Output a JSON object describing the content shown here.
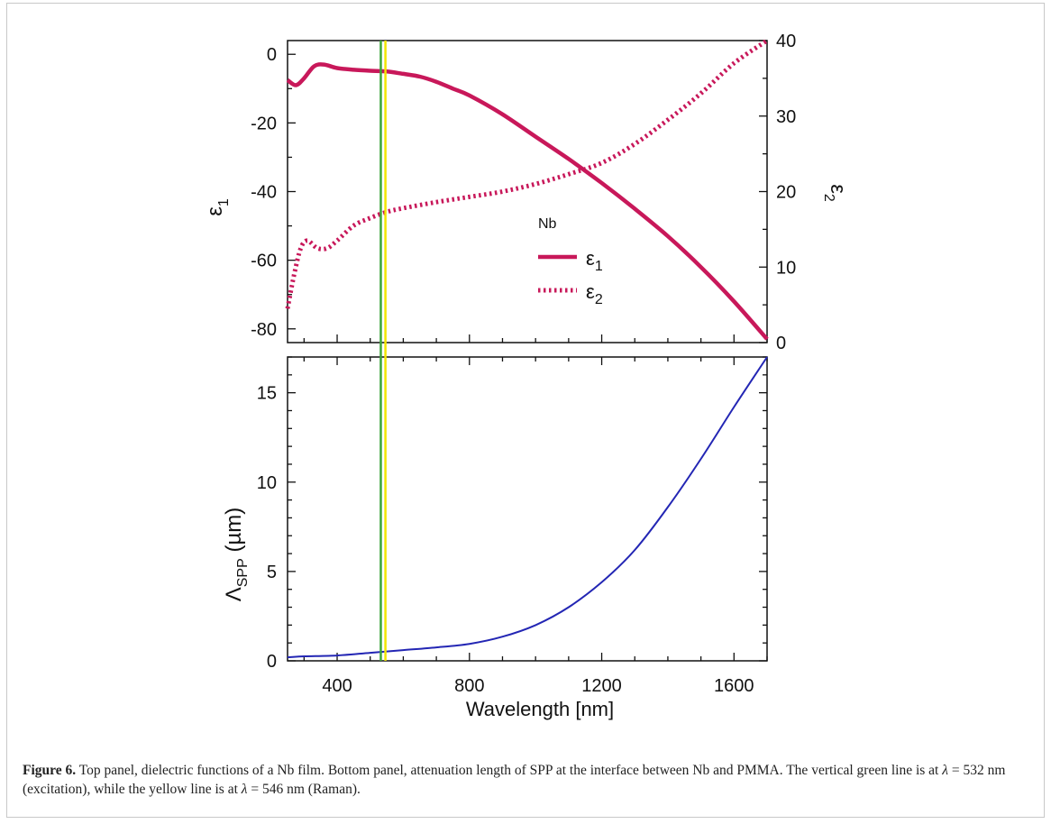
{
  "chart_data": [
    {
      "type": "line",
      "panel": "top",
      "x_range": [
        250,
        1700
      ],
      "left_axis": {
        "ticks": [
          0,
          -20,
          -40,
          -60,
          -80
        ],
        "range": [
          -84,
          4
        ]
      },
      "right_axis": {
        "ticks": [
          40,
          30,
          20,
          10,
          0
        ],
        "range": [
          0,
          40
        ]
      },
      "legend": {
        "title": "Nb",
        "entries": [
          {
            "symbol": "ε",
            "subscript": "1",
            "style": "solid"
          },
          {
            "symbol": "ε",
            "subscript": "2",
            "style": "dotted"
          }
        ],
        "placement": "center"
      },
      "series": [
        {
          "axis": "left",
          "style": "solid",
          "color": "#c8185a",
          "x": [
            250,
            275,
            300,
            330,
            360,
            400,
            450,
            500,
            550,
            600,
            650,
            700,
            750,
            800,
            900,
            1000,
            1100,
            1200,
            1300,
            1400,
            1500,
            1600,
            1700
          ],
          "y": [
            -7.5,
            -9,
            -7,
            -3.5,
            -3,
            -4,
            -4.5,
            -4.8,
            -5,
            -5.7,
            -6.5,
            -8,
            -10,
            -12,
            -17.5,
            -24,
            -30.5,
            -37.5,
            -45,
            -53,
            -62,
            -72,
            -83
          ]
        },
        {
          "axis": "right",
          "style": "dotted",
          "color": "#c8185a",
          "x": [
            250,
            270,
            290,
            310,
            340,
            370,
            400,
            450,
            500,
            550,
            600,
            700,
            800,
            900,
            1000,
            1100,
            1200,
            1300,
            1400,
            1500,
            1600,
            1700
          ],
          "y": [
            4.5,
            9,
            12.5,
            13.5,
            12.5,
            12.5,
            13.5,
            15.5,
            16.5,
            17.3,
            17.8,
            18.6,
            19.3,
            20,
            21,
            22.3,
            23.8,
            26.3,
            29.5,
            33,
            37,
            41
          ]
        }
      ],
      "ylabel_left": {
        "symbol": "ε",
        "subscript": "1"
      },
      "ylabel_right": {
        "symbol": "ε",
        "subscript": "2"
      }
    },
    {
      "type": "line",
      "panel": "bottom",
      "x_range": [
        250,
        1700
      ],
      "xticks": [
        400,
        800,
        1200,
        1600
      ],
      "y_axis": {
        "ticks": [
          0,
          5,
          10,
          15
        ],
        "range": [
          0,
          17
        ]
      },
      "xlabel": "Wavelength [nm]",
      "ylabel": {
        "symbol": "Λ",
        "subscript": "SPP",
        "unit": " (µm)"
      },
      "series": [
        {
          "style": "solid",
          "color": "#2326b4",
          "x": [
            250,
            300,
            400,
            500,
            600,
            700,
            800,
            900,
            1000,
            1100,
            1200,
            1300,
            1400,
            1500,
            1600,
            1700
          ],
          "y": [
            0.2,
            0.25,
            0.3,
            0.45,
            0.6,
            0.75,
            0.95,
            1.35,
            2.0,
            3.0,
            4.4,
            6.2,
            8.6,
            11.3,
            14.2,
            17.0
          ]
        }
      ]
    }
  ],
  "vertical_lines": [
    {
      "x": 532,
      "color": "#3aa53a",
      "label": "excitation"
    },
    {
      "x": 546,
      "color": "#f2e600",
      "label": "Raman"
    }
  ],
  "caption": {
    "label": "Figure 6.",
    "part1": " Top panel, dielectric functions of a Nb film. Bottom panel, attenuation length of SPP at the interface between Nb and PMMA. The vertical green line is at ",
    "lambda": "λ",
    "part2": " = 532 nm (excitation), while the yellow line is at ",
    "part3": " = 546 nm (Raman)."
  }
}
